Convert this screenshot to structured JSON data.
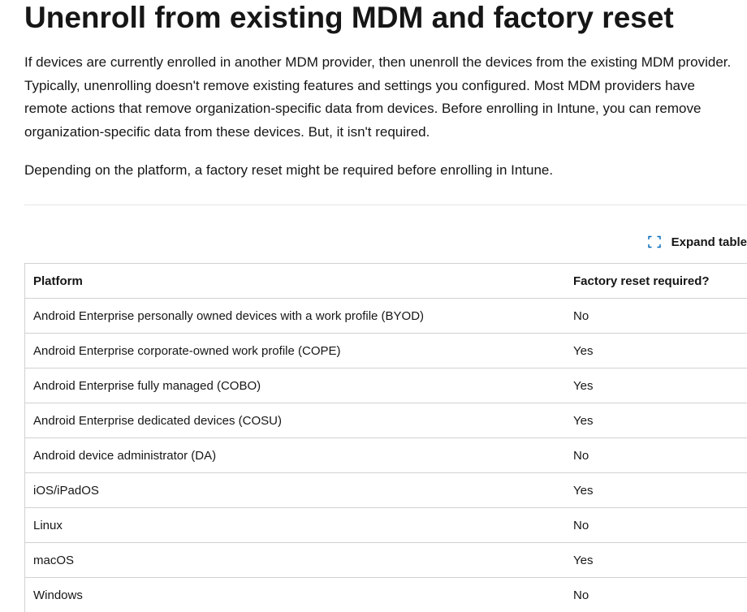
{
  "heading": "Unenroll from existing MDM and factory reset",
  "paragraph1": "If devices are currently enrolled in another MDM provider, then unenroll the devices from the existing MDM provider. Typically, unenrolling doesn't remove existing features and settings you configured. Most MDM providers have remote actions that remove organization-specific data from devices. Before enrolling in Intune, you can remove organization-specific data from these devices. But, it isn't required.",
  "paragraph2": "Depending on the platform, a factory reset might be required before enrolling in Intune.",
  "expand_table": {
    "label": "Expand table",
    "icon": "expand-icon"
  },
  "table": {
    "headers": [
      "Platform",
      "Factory reset required?"
    ],
    "rows": [
      [
        "Android Enterprise personally owned devices with a work profile (BYOD)",
        "No"
      ],
      [
        "Android Enterprise corporate-owned work profile (COPE)",
        "Yes"
      ],
      [
        "Android Enterprise fully managed (COBO)",
        "Yes"
      ],
      [
        "Android Enterprise dedicated devices (COSU)",
        "Yes"
      ],
      [
        "Android device administrator (DA)",
        "No"
      ],
      [
        "iOS/iPadOS",
        "Yes"
      ],
      [
        "Linux",
        "No"
      ],
      [
        "macOS",
        "Yes"
      ],
      [
        "Windows",
        "No"
      ]
    ]
  },
  "colors": {
    "text": "#161616",
    "icon": "#0067b8",
    "border": "#d1d1d1"
  }
}
